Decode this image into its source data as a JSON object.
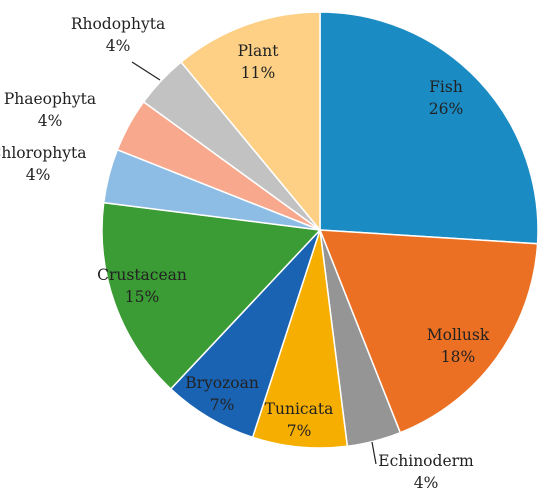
{
  "chart_data": {
    "type": "pie",
    "title": "",
    "slices": [
      {
        "label": "Fish",
        "value": 26,
        "display": "26%",
        "color": "#1b8bc3"
      },
      {
        "label": "Mollusk",
        "value": 18,
        "display": "18%",
        "color": "#ec7023"
      },
      {
        "label": "Echinoderm",
        "value": 4,
        "display": "4%",
        "color": "#959595"
      },
      {
        "label": "Tunicata",
        "value": 7,
        "display": "7%",
        "color": "#f6ae00"
      },
      {
        "label": "Bryozoan",
        "value": 7,
        "display": "7%",
        "color": "#1a63b3"
      },
      {
        "label": "Crustacean",
        "value": 15,
        "display": "15%",
        "color": "#3b9b35"
      },
      {
        "label": "Chlorophyta",
        "value": 4,
        "display": "4%",
        "color": "#8dbde4"
      },
      {
        "label": "Phaeophyta",
        "value": 4,
        "display": "4%",
        "color": "#f8a98d"
      },
      {
        "label": "Rhodophyta",
        "value": 4,
        "display": "4%",
        "color": "#c2c2c2"
      },
      {
        "label": "Plant",
        "value": 11,
        "display": "11%",
        "color": "#fdd085"
      }
    ],
    "start_position": "top",
    "direction": "clockwise",
    "legend": "none"
  }
}
